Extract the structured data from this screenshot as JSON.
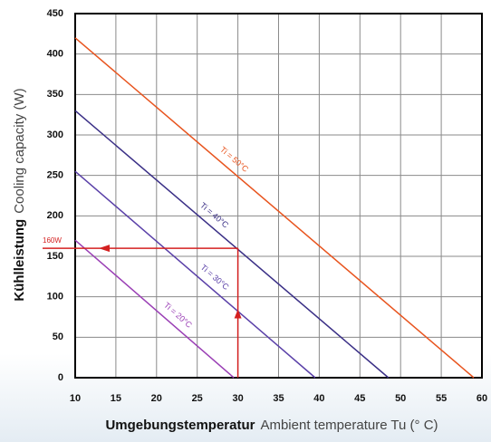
{
  "chart_data": {
    "type": "line",
    "ylabel": {
      "bold": "Kühlleistung",
      "text": "Cooling capacity (W)"
    },
    "xlabel": {
      "bold": "Umgebungstemperatur",
      "text": "Ambient temperature Tu (° C)"
    },
    "xlim": [
      10,
      60
    ],
    "xticks": [
      10,
      15,
      20,
      25,
      30,
      35,
      40,
      45,
      50,
      55,
      60
    ],
    "ylim": [
      0,
      450
    ],
    "yticks": [
      0,
      50,
      100,
      150,
      200,
      250,
      300,
      350,
      400,
      450
    ],
    "grid": true,
    "series": [
      {
        "name": "Ti = 50°C",
        "color": "#e8541e",
        "x": [
          10,
          59
        ],
        "values": [
          420,
          0
        ]
      },
      {
        "name": "Ti = 40°C",
        "color": "#3a2f86",
        "x": [
          10,
          48.5
        ],
        "values": [
          330,
          0
        ]
      },
      {
        "name": "Ti = 30°C",
        "color": "#5a40a8",
        "x": [
          10,
          39.5
        ],
        "values": [
          255,
          0
        ]
      },
      {
        "name": "Ti = 20°C",
        "color": "#9a3fb5",
        "x": [
          10,
          29.5
        ],
        "values": [
          170,
          0
        ]
      }
    ],
    "annotation": {
      "label": "160W",
      "x": 30,
      "y": 160,
      "color": "#d42020"
    }
  }
}
